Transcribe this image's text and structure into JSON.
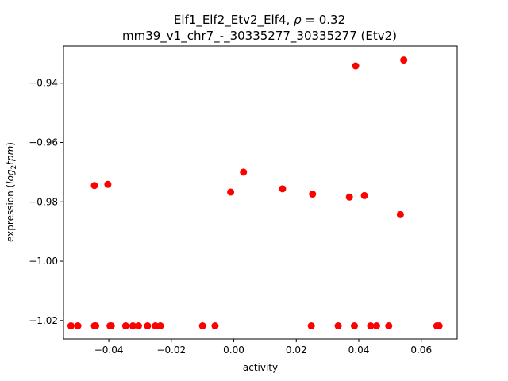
{
  "chart_data": {
    "type": "scatter",
    "title_line1_prefix": "Elf1_Elf2_Etv2_Elf4, ",
    "title_line1_rho": "ρ",
    "title_line1_suffix": " = 0.32",
    "title_line2": "mm39_v1_chr7_-_30335277_30335277 (Etv2)",
    "xlabel": "activity",
    "ylabel_prefix": "expression (",
    "ylabel_log": "log",
    "ylabel_sub": "2",
    "ylabel_tpm": "tpm",
    "ylabel_suffix": ")",
    "xlim": [
      -0.0545,
      0.0715
    ],
    "ylim": [
      -1.0262,
      -0.9275
    ],
    "xticks": [
      -0.04,
      -0.02,
      0.0,
      0.02,
      0.04,
      0.06
    ],
    "xtick_labels": [
      "−0.04",
      "−0.02",
      "0.00",
      "0.02",
      "0.04",
      "0.06"
    ],
    "yticks": [
      -1.02,
      -1.0,
      -0.98,
      -0.96,
      -0.94
    ],
    "ytick_labels": [
      "−1.02",
      "−1.00",
      "−0.98",
      "−0.96",
      "−0.94"
    ],
    "marker_color": "#ff0000",
    "grid": false,
    "points": [
      {
        "x": -0.0521,
        "y": -1.0218
      },
      {
        "x": -0.0499,
        "y": -1.0218
      },
      {
        "x": -0.0446,
        "y": -0.9745
      },
      {
        "x": -0.0446,
        "y": -1.0218
      },
      {
        "x": -0.0442,
        "y": -1.0218
      },
      {
        "x": -0.0403,
        "y": -0.9741
      },
      {
        "x": -0.0396,
        "y": -1.0218
      },
      {
        "x": -0.0392,
        "y": -1.0218
      },
      {
        "x": -0.0346,
        "y": -1.0218
      },
      {
        "x": -0.0323,
        "y": -1.0218
      },
      {
        "x": -0.0305,
        "y": -1.0218
      },
      {
        "x": -0.0276,
        "y": -1.0218
      },
      {
        "x": -0.0251,
        "y": -1.0218
      },
      {
        "x": -0.0235,
        "y": -1.0218
      },
      {
        "x": -0.01,
        "y": -1.0218
      },
      {
        "x": -0.006,
        "y": -1.0218
      },
      {
        "x": -0.001,
        "y": -0.9767
      },
      {
        "x": 0.0031,
        "y": -0.97
      },
      {
        "x": 0.0156,
        "y": -0.9756
      },
      {
        "x": 0.0248,
        "y": -1.0218
      },
      {
        "x": 0.0252,
        "y": -0.9774
      },
      {
        "x": 0.0334,
        "y": -1.0218
      },
      {
        "x": 0.037,
        "y": -0.9784
      },
      {
        "x": 0.0386,
        "y": -1.0218
      },
      {
        "x": 0.039,
        "y": -0.9342
      },
      {
        "x": 0.0418,
        "y": -0.9779
      },
      {
        "x": 0.0438,
        "y": -1.0218
      },
      {
        "x": 0.0457,
        "y": -1.0218
      },
      {
        "x": 0.0496,
        "y": -1.0218
      },
      {
        "x": 0.0533,
        "y": -0.9843
      },
      {
        "x": 0.0544,
        "y": -0.9322
      },
      {
        "x": 0.065,
        "y": -1.0218
      },
      {
        "x": 0.0657,
        "y": -1.0218
      }
    ]
  }
}
